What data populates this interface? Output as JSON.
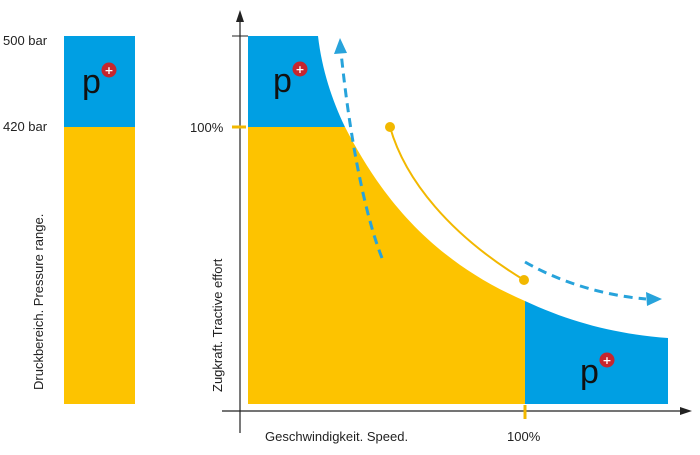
{
  "colors": {
    "pressure_normal": "#FDC300",
    "pressure_high": "#009FE3",
    "axis": "#222222",
    "plus_badge": "#C6262E",
    "arrow": "#27A3DB",
    "curve_line": "#F2B800"
  },
  "pressure_bar": {
    "top_label": "500 bar",
    "mid_label": "420 bar",
    "axis_label": "Druckbereich. Pressure range."
  },
  "chart": {
    "y_axis_label": "Zugkraft. Tractive effort",
    "x_axis_label": "Geschwindigkeit. Speed.",
    "y_tick_label": "100%",
    "x_tick_label": "100%"
  },
  "symbol": {
    "letter": "p",
    "badge": "+",
    "icon": "pressure-plus-icon"
  }
}
